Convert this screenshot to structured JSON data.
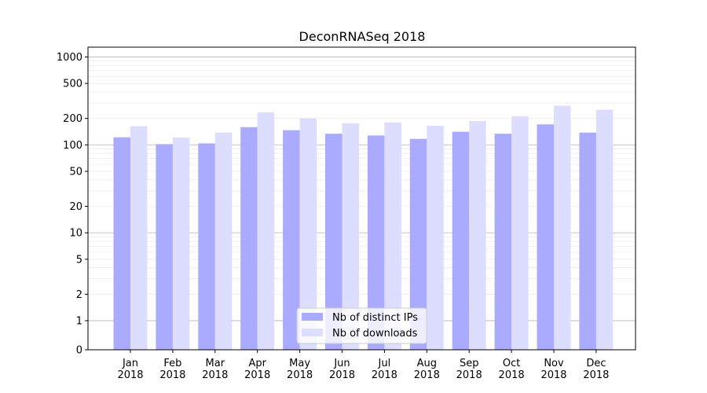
{
  "chart_data": {
    "type": "bar",
    "title": "DeconRNASeq 2018",
    "xlabel": "",
    "ylabel": "",
    "yscale": "symlog",
    "ylim": [
      0,
      1300
    ],
    "yticks": [
      0,
      1,
      2,
      5,
      10,
      20,
      50,
      100,
      200,
      500,
      1000
    ],
    "ytick_labels": [
      "0",
      "1",
      "2",
      "5",
      "10",
      "20",
      "50",
      "100",
      "200",
      "500",
      "1000"
    ],
    "categories": [
      "Jan\n2018",
      "Feb\n2018",
      "Mar\n2018",
      "Apr\n2018",
      "May\n2018",
      "Jun\n2018",
      "Jul\n2018",
      "Aug\n2018",
      "Sep\n2018",
      "Oct\n2018",
      "Nov\n2018",
      "Dec\n2018"
    ],
    "series": [
      {
        "name": "Nb of distinct IPs",
        "color": "#aaaaff",
        "values": [
          122,
          102,
          104,
          159,
          147,
          134,
          128,
          117,
          141,
          134,
          171,
          138
        ]
      },
      {
        "name": "Nb of downloads",
        "color": "#ddddff",
        "values": [
          163,
          121,
          138,
          235,
          200,
          176,
          180,
          165,
          187,
          212,
          279,
          251
        ]
      }
    ],
    "grid": true,
    "legend": "lower-center"
  }
}
